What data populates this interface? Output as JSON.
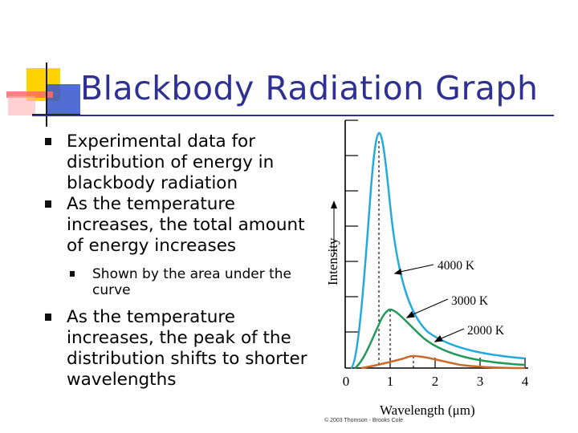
{
  "slide": {
    "title": "Blackbody Radiation Graph",
    "bullets": [
      {
        "text": "Experimental data for distribution of energy in blackbody radiation",
        "level": 1
      },
      {
        "text": "As the temperature increases, the total amount of energy increases",
        "level": 1
      },
      {
        "text": "Shown by the area under the curve",
        "level": 2
      },
      {
        "text": "As the temperature increases, the peak of the distribution shifts to shorter wavelengths",
        "level": 1
      }
    ]
  },
  "figure": {
    "ylabel": "Intensity",
    "xlabel": "Wavelength (μm)",
    "xticks": [
      "0",
      "1",
      "2",
      "3",
      "4"
    ],
    "labels": [
      "4000 K",
      "3000 K",
      "2000 K"
    ],
    "credit": "© 2003 Thomson - Brooks Cole",
    "colors": {
      "k4000": "#23a9dc",
      "k3000": "#1f9a57",
      "k2000": "#cc6a2a",
      "axis": "#000000",
      "title": "#2e3192"
    }
  }
}
